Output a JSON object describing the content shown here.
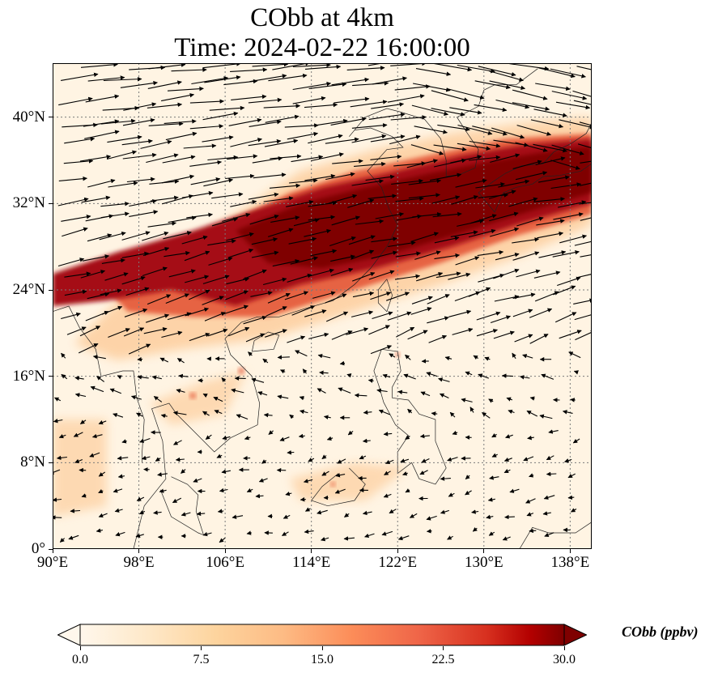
{
  "title": {
    "line1": "CObb at 4km",
    "line2": "Time: 2024-02-22 16:00:00"
  },
  "map": {
    "projection": "PlateCarree",
    "lon_range": [
      90,
      140
    ],
    "lat_range": [
      0,
      45
    ],
    "gridlines": "dotted",
    "x_ticks": [
      {
        "value": 90,
        "label": "90°E"
      },
      {
        "value": 98,
        "label": "98°E"
      },
      {
        "value": 106,
        "label": "106°E"
      },
      {
        "value": 114,
        "label": "114°E"
      },
      {
        "value": 122,
        "label": "122°E"
      },
      {
        "value": 130,
        "label": "130°E"
      },
      {
        "value": 138,
        "label": "138°E"
      }
    ],
    "y_ticks": [
      {
        "value": 0,
        "label": "0°"
      },
      {
        "value": 8,
        "label": "8°N"
      },
      {
        "value": 16,
        "label": "16°N"
      },
      {
        "value": 24,
        "label": "24°N"
      },
      {
        "value": 32,
        "label": "32°N"
      },
      {
        "value": 40,
        "label": "40°N"
      }
    ],
    "plume": {
      "colors": {
        "bg": "#fff4e3",
        "light": "#fdd0a2",
        "mid": "#e55a3a",
        "dark": "#a50f15",
        "core": "#7f0000"
      }
    }
  },
  "colorbar": {
    "title": "CObb (ppbv)",
    "vmin": 0.0,
    "vmax": 30.0,
    "extend": "both",
    "colormap": "OrRd",
    "ticks": [
      {
        "value": 0.0,
        "label": "0.0"
      },
      {
        "value": 7.5,
        "label": "7.5"
      },
      {
        "value": 15.0,
        "label": "15.0"
      },
      {
        "value": 22.5,
        "label": "22.5"
      },
      {
        "value": 30.0,
        "label": "30.0"
      }
    ]
  }
}
